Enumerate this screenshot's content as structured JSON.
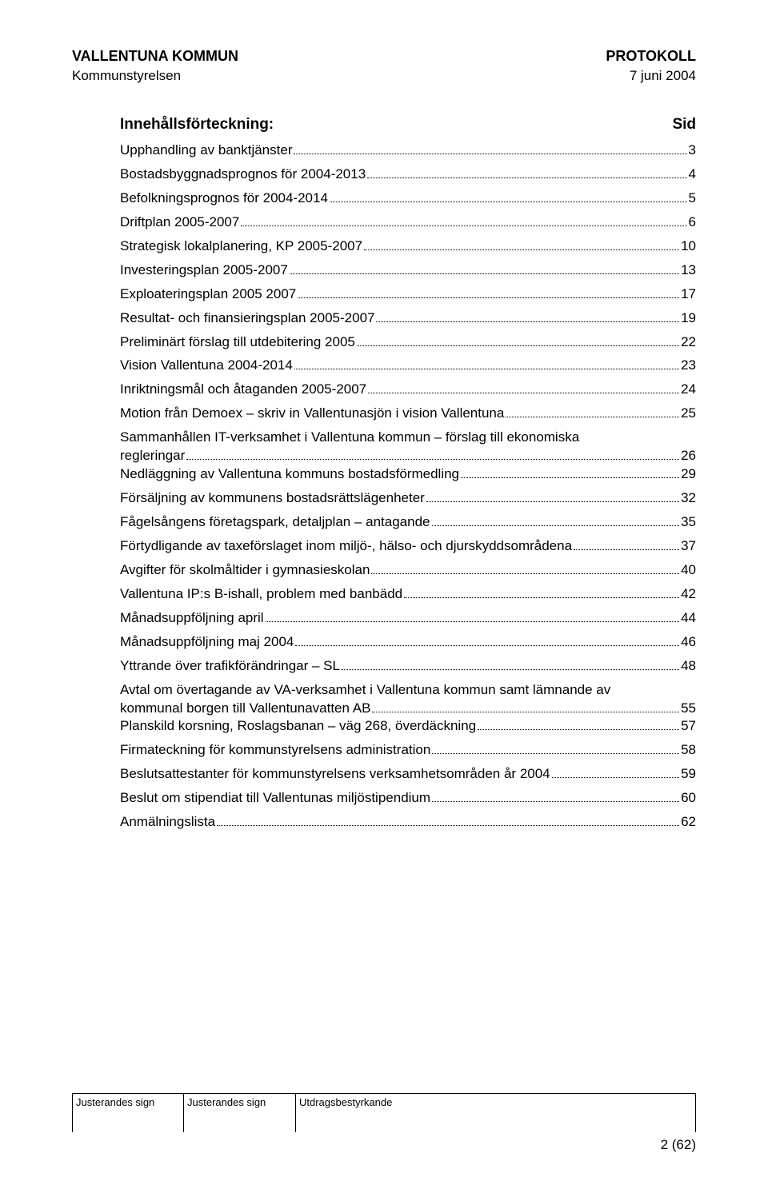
{
  "header": {
    "org": "VALLENTUNA KOMMUN",
    "doc_type": "PROTOKOLL",
    "committee": "Kommunstyrelsen",
    "date": "7 juni 2004"
  },
  "toc": {
    "title": "Innehållsförteckning:",
    "page_label": "Sid",
    "entries": [
      {
        "text": "Upphandling av banktjänster",
        "page": "3"
      },
      {
        "text": "Bostadsbyggnadsprognos för 2004-2013",
        "page": "4"
      },
      {
        "text": "Befolkningsprognos för 2004-2014",
        "page": "5"
      },
      {
        "text": "Driftplan 2005-2007",
        "page": "6"
      },
      {
        "text": "Strategisk lokalplanering, KP 2005-2007",
        "page": "10"
      },
      {
        "text": "Investeringsplan 2005-2007",
        "page": "13"
      },
      {
        "text": "Exploateringsplan 2005 2007",
        "page": "17"
      },
      {
        "text": "Resultat- och finansieringsplan 2005-2007",
        "page": "19"
      },
      {
        "text": "Preliminärt förslag till utdebitering 2005",
        "page": "22"
      },
      {
        "text": "Vision Vallentuna 2004-2014",
        "page": "23"
      },
      {
        "text": "Inriktningsmål och åtaganden 2005-2007",
        "page": "24"
      },
      {
        "text": "Motion från Demoex – skriv in Vallentunasjön i vision Vallentuna",
        "page": "25"
      },
      {
        "text_line1": "Sammanhållen IT-verksamhet i Vallentuna kommun – förslag till ekonomiska",
        "text_line2": "regleringar",
        "page": "26",
        "multi": true
      },
      {
        "text": "Nedläggning av Vallentuna kommuns bostadsförmedling",
        "page": "29"
      },
      {
        "text": "Försäljning av kommunens bostadsrättslägenheter",
        "page": "32"
      },
      {
        "text": "Fågelsångens företagspark, detaljplan – antagande",
        "page": "35"
      },
      {
        "text": "Förtydligande av taxeförslaget inom miljö-, hälso- och djurskyddsområdena",
        "page": "37"
      },
      {
        "text": "Avgifter för skolmåltider i gymnasieskolan",
        "page": "40"
      },
      {
        "text": "Vallentuna IP:s B-ishall, problem med banbädd",
        "page": "42"
      },
      {
        "text": "Månadsuppföljning april",
        "page": "44"
      },
      {
        "text": "Månadsuppföljning maj 2004",
        "page": "46"
      },
      {
        "text": "Yttrande över trafikförändringar – SL",
        "page": "48"
      },
      {
        "text_line1": "Avtal om övertagande av VA-verksamhet i Vallentuna kommun samt lämnande av",
        "text_line2": "kommunal borgen till Vallentunavatten AB",
        "page": "55",
        "multi": true
      },
      {
        "text": "Planskild korsning, Roslagsbanan – väg 268, överdäckning",
        "page": "57"
      },
      {
        "text": "Firmateckning för kommunstyrelsens administration",
        "page": "58"
      },
      {
        "text": "Beslutsattestanter för kommunstyrelsens verksamhetsområden år 2004",
        "page": "59"
      },
      {
        "text": "Beslut om stipendiat till Vallentunas miljöstipendium",
        "page": "60"
      },
      {
        "text": "Anmälningslista",
        "page": "62"
      }
    ]
  },
  "footer": {
    "cell1": "Justerandes sign",
    "cell2": "Justerandes sign",
    "cell3": "Utdragsbestyrkande",
    "page_number": "2 (62)"
  }
}
